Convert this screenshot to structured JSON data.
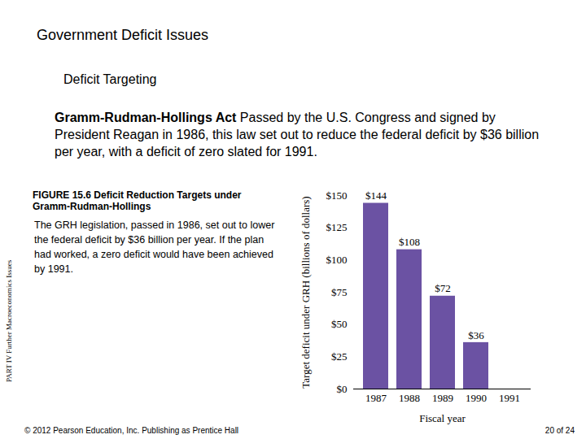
{
  "page": {
    "heading": "Government Deficit Issues",
    "subheading": "Deficit Targeting",
    "term": "Gramm-Rudman-Hollings Act",
    "definition": "Passed by the U.S. Congress and signed by President Reagan in 1986, this law set out to reduce the federal deficit by $36 billion per year, with a deficit of zero slated for 1991.",
    "side_label": "PART IV Further Macroeconomics Issues",
    "footer": "© 2012 Pearson Education, Inc. Publishing as Prentice Hall",
    "page_number": "20 of 24"
  },
  "chart_data": {
    "type": "bar",
    "title": "FIGURE 15.6 Deficit Reduction Targets under Gramm-Rudman-Hollings",
    "caption": "The GRH legislation, passed in 1986, set out to lower the federal deficit by $36 billion per year. If the plan had worked, a zero deficit would have been achieved by 1991.",
    "x_label": "Fiscal year",
    "y_label": "Target deficit under GRH (billions of dollars)",
    "categories": [
      "1987",
      "1988",
      "1989",
      "1990",
      "1991"
    ],
    "values": [
      144,
      108,
      72,
      36,
      0
    ],
    "value_labels": [
      "$144",
      "$108",
      "$72",
      "$36",
      null
    ],
    "data_labels": true,
    "color": "#6b52a3",
    "ylim": [
      0,
      150
    ],
    "yticks": [
      {
        "value": 0,
        "label": "$0"
      },
      {
        "value": 25,
        "label": "$25"
      },
      {
        "value": 50,
        "label": "$50"
      },
      {
        "value": 75,
        "label": "$75"
      },
      {
        "value": 100,
        "label": "$100"
      },
      {
        "value": 125,
        "label": "$125"
      },
      {
        "value": 150,
        "label": "$150"
      }
    ],
    "grid": false
  }
}
